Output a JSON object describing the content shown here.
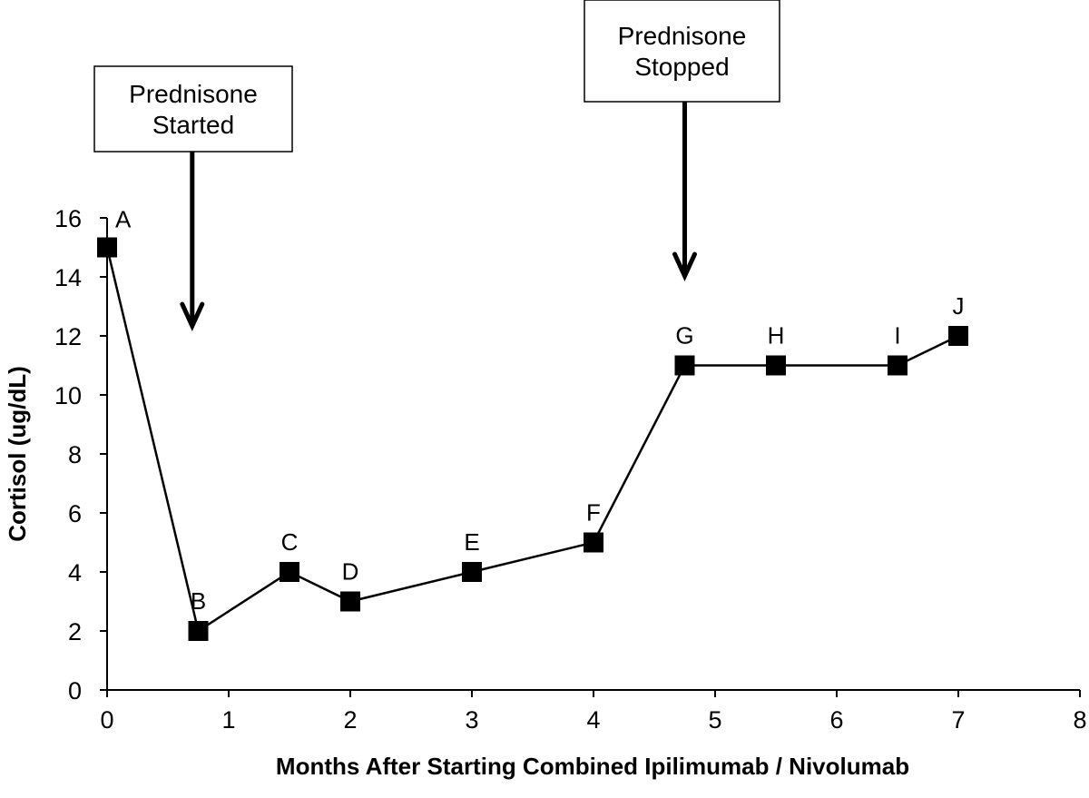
{
  "chart_data": {
    "type": "line",
    "xlabel": "Months After Starting Combined Ipilimumab / Nivolumab",
    "ylabel": "Cortisol (ug/dL)",
    "xlim": [
      0,
      8
    ],
    "ylim": [
      0,
      16
    ],
    "x_ticks": [
      "0",
      "1",
      "2",
      "3",
      "4",
      "5",
      "6",
      "7",
      "8"
    ],
    "y_ticks": [
      "0",
      "2",
      "4",
      "6",
      "8",
      "10",
      "12",
      "14",
      "16"
    ],
    "grid": false,
    "marker": "square",
    "series": [
      {
        "points": [
          {
            "label": "A",
            "x": 0,
            "y": 15
          },
          {
            "label": "B",
            "x": 0.75,
            "y": 2
          },
          {
            "label": "C",
            "x": 1.5,
            "y": 4
          },
          {
            "label": "D",
            "x": 2,
            "y": 3
          },
          {
            "label": "E",
            "x": 3,
            "y": 4
          },
          {
            "label": "F",
            "x": 4,
            "y": 5
          },
          {
            "label": "G",
            "x": 4.75,
            "y": 11
          },
          {
            "label": "H",
            "x": 5.5,
            "y": 11
          },
          {
            "label": "I",
            "x": 6.5,
            "y": 11
          },
          {
            "label": "J",
            "x": 7,
            "y": 12
          }
        ]
      }
    ],
    "annotations": [
      {
        "lines": [
          "Prednisone",
          "Started"
        ],
        "x": 0.7
      },
      {
        "lines": [
          "Prednisone",
          "Stopped"
        ],
        "x": 4.75
      }
    ]
  }
}
